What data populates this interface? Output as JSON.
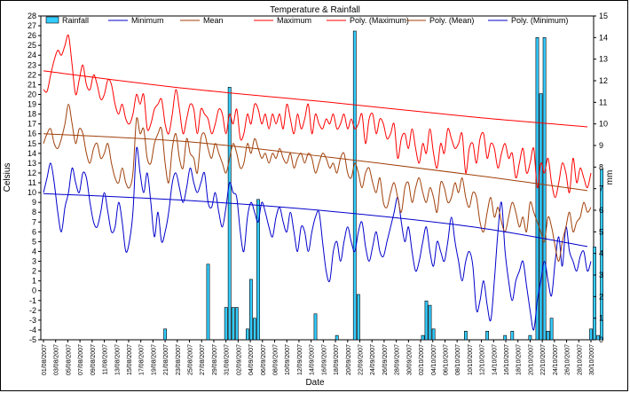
{
  "chart_data": {
    "type": "bar+line",
    "title": "Temperature & Rainfall",
    "xlabel": "Date",
    "ylabel": "Celsius",
    "y2label": "mm",
    "ylim": [
      -5,
      28
    ],
    "y2lim": [
      0,
      15
    ],
    "grid": false,
    "legend_position": "top",
    "x_tick_labels": [
      "01/08/2007",
      "03/08/2007",
      "05/08/2007",
      "07/08/2007",
      "09/08/2007",
      "11/08/2007",
      "13/08/2007",
      "15/08/2007",
      "17/08/2007",
      "19/08/2007",
      "21/08/2007",
      "23/08/2007",
      "25/08/2007",
      "27/08/2007",
      "29/08/2007",
      "31/08/2007",
      "02/09/2007",
      "04/09/2007",
      "06/09/2007",
      "08/09/2007",
      "10/09/2007",
      "12/09/2007",
      "14/09/2007",
      "16/09/2007",
      "18/09/2007",
      "20/09/2007",
      "22/09/2007",
      "24/09/2007",
      "26/09/2007",
      "28/09/2007",
      "30/09/2007",
      "02/10/2007",
      "04/10/2007",
      "06/10/2007",
      "08/10/2007",
      "10/10/2007",
      "12/10/2007",
      "14/10/2007",
      "16/10/2007",
      "18/10/2007",
      "20/10/2007",
      "22/10/2007",
      "24/10/2007",
      "26/10/2007",
      "28/10/2007",
      "30/10/2007"
    ],
    "legend": [
      {
        "name": "Rainfall",
        "color": "#33ccff",
        "kind": "bar"
      },
      {
        "name": "Minimum",
        "color": "#0000cc",
        "kind": "line"
      },
      {
        "name": "Mean",
        "color": "#a0400a",
        "kind": "line"
      },
      {
        "name": "Maximum",
        "color": "#ff0000",
        "kind": "line"
      },
      {
        "name": "Poly. (Maximum)",
        "color": "#ff0000",
        "kind": "line"
      },
      {
        "name": "Poly. (Mean)",
        "color": "#a0400a",
        "kind": "line"
      },
      {
        "name": "Poly. (Minimum)",
        "color": "#0000cc",
        "kind": "line"
      }
    ],
    "rainfall_mm": [
      0,
      0,
      0,
      0,
      0,
      0,
      0,
      0,
      0,
      0,
      0,
      0,
      0,
      0,
      0,
      0,
      0,
      0,
      0,
      0,
      0,
      0,
      0,
      0,
      0,
      0,
      0,
      0,
      0,
      0,
      0,
      0,
      0,
      0,
      0.5,
      0,
      0,
      0,
      0,
      0,
      0,
      0,
      0,
      0,
      0,
      0,
      3.5,
      0,
      0,
      0,
      0,
      1.5,
      11.7,
      1.5,
      1.5,
      0,
      0,
      0.5,
      2.8,
      1.0,
      6.5,
      0,
      0,
      0,
      0,
      0,
      0,
      0,
      0,
      0,
      0,
      0,
      0,
      0,
      0,
      0,
      1.2,
      0,
      0,
      0,
      0,
      0,
      0.2,
      0,
      0,
      0,
      0,
      14.3,
      2.1,
      0,
      0,
      0,
      0,
      0,
      0,
      0,
      0,
      0,
      0,
      0,
      0,
      0,
      0,
      0,
      0,
      0,
      0.2,
      1.8,
      1.6,
      0.5,
      0,
      0,
      0,
      0,
      0,
      0,
      0,
      0,
      0.4,
      0,
      0,
      0,
      0,
      0,
      0.4,
      0,
      0,
      0,
      0,
      0.2,
      0,
      0.4,
      0,
      0,
      0,
      0,
      0.2,
      0,
      14.0,
      11.4,
      14.0,
      0.4,
      1.0,
      0,
      0,
      0,
      0,
      0,
      0,
      0,
      0,
      0,
      0,
      0.5,
      4.3,
      0.2,
      7.9
    ],
    "maximum": [
      20.5,
      20.3,
      22.0,
      23.5,
      24.5,
      24.0,
      25.0,
      26.0,
      23.0,
      20.0,
      21.5,
      23.0,
      21.0,
      20.5,
      22.0,
      21.0,
      19.5,
      20.0,
      21.5,
      21.0,
      19.0,
      18.0,
      19.0,
      17.5,
      17.0,
      18.0,
      20.0,
      19.0,
      20.0,
      16.5,
      17.0,
      18.5,
      19.0,
      19.5,
      17.0,
      16.0,
      18.0,
      20.5,
      18.5,
      16.0,
      17.5,
      19.0,
      18.5,
      16.0,
      18.5,
      18.0,
      17.5,
      16.0,
      17.0,
      18.5,
      18.0,
      16.0,
      18.0,
      17.0,
      18.5,
      15.5,
      16.0,
      18.0,
      17.0,
      19.0,
      18.5,
      17.0,
      18.0,
      16.5,
      18.0,
      17.0,
      18.0,
      16.5,
      19.0,
      17.5,
      16.0,
      18.0,
      16.5,
      17.5,
      19.0,
      16.0,
      18.0,
      17.0,
      16.5,
      17.5,
      17.0,
      18.0,
      16.5,
      17.0,
      18.0,
      16.5,
      17.5,
      16.5,
      17.0,
      18.0,
      15.0,
      17.5,
      18.0,
      16.0,
      17.5,
      17.0,
      15.5,
      16.0,
      17.0,
      13.5,
      15.5,
      16.0,
      14.5,
      16.5,
      14.5,
      13.0,
      15.0,
      14.0,
      16.5,
      14.0,
      12.5,
      15.0,
      14.0,
      16.5,
      15.5,
      14.5,
      15.0,
      16.0,
      12.0,
      14.5,
      15.0,
      13.0,
      15.5,
      16.0,
      13.5,
      15.0,
      14.5,
      12.5,
      14.0,
      15.0,
      13.5,
      14.0,
      11.5,
      13.0,
      14.5,
      12.0,
      13.0,
      14.5,
      10.5,
      13.0,
      12.0,
      13.5,
      11.0,
      9.5,
      11.0,
      13.0,
      12.0,
      10.0,
      13.5,
      11.0,
      12.5,
      11.5,
      10.5,
      12.0
    ],
    "mean": [
      15.0,
      16.0,
      16.5,
      15.0,
      14.5,
      15.5,
      17.0,
      19.0,
      17.0,
      15.0,
      16.5,
      16.0,
      14.0,
      13.0,
      14.5,
      15.0,
      13.5,
      14.0,
      15.0,
      13.0,
      11.5,
      11.0,
      12.5,
      11.0,
      10.5,
      12.0,
      17.5,
      16.0,
      16.5,
      13.5,
      13.0,
      15.0,
      16.0,
      16.5,
      13.0,
      11.0,
      14.5,
      16.0,
      13.5,
      12.5,
      15.5,
      14.0,
      13.5,
      12.0,
      15.5,
      16.0,
      14.5,
      13.5,
      15.0,
      14.0,
      13.0,
      12.0,
      13.5,
      15.0,
      14.0,
      12.5,
      13.0,
      15.0,
      14.0,
      15.5,
      14.5,
      13.5,
      14.0,
      13.0,
      14.0,
      13.5,
      14.5,
      13.5,
      13.0,
      14.0,
      12.5,
      13.5,
      14.0,
      13.0,
      14.0,
      13.5,
      12.0,
      13.0,
      14.0,
      13.5,
      12.5,
      13.0,
      12.0,
      13.5,
      14.0,
      12.0,
      11.5,
      13.0,
      12.0,
      10.5,
      12.0,
      12.5,
      11.0,
      10.0,
      11.5,
      9.0,
      8.5,
      10.0,
      11.0,
      9.5,
      8.0,
      10.5,
      11.0,
      9.0,
      10.5,
      11.5,
      10.0,
      9.0,
      10.5,
      9.5,
      8.0,
      11.0,
      10.5,
      9.0,
      9.5,
      11.0,
      10.0,
      11.5,
      9.5,
      8.5,
      10.0,
      9.5,
      7.0,
      6.0,
      8.0,
      9.5,
      7.5,
      8.5,
      7.0,
      6.0,
      7.5,
      9.0,
      8.0,
      6.5,
      7.5,
      6.0,
      9.0,
      8.0,
      7.0,
      6.0,
      5.0,
      7.5,
      6.5,
      4.5,
      3.0,
      5.0,
      6.5,
      8.0,
      6.0,
      7.0,
      7.5,
      9.0,
      8.0,
      8.5
    ],
    "minimum": [
      10.0,
      11.5,
      13.0,
      11.0,
      8.0,
      6.0,
      8.5,
      10.0,
      12.5,
      11.0,
      10.0,
      12.0,
      11.5,
      9.0,
      7.0,
      6.5,
      8.0,
      10.0,
      8.0,
      6.0,
      6.5,
      9.0,
      7.0,
      4.0,
      5.0,
      8.0,
      14.5,
      12.0,
      10.0,
      12.0,
      9.0,
      5.5,
      8.0,
      5.0,
      6.0,
      8.0,
      11.0,
      12.0,
      10.5,
      9.0,
      10.5,
      12.5,
      11.0,
      10.0,
      11.0,
      12.0,
      9.0,
      8.5,
      10.0,
      8.0,
      6.5,
      8.5,
      11.0,
      10.0,
      9.5,
      6.0,
      4.0,
      7.5,
      9.0,
      8.0,
      7.0,
      9.0,
      8.0,
      6.5,
      5.5,
      7.5,
      8.5,
      7.0,
      6.0,
      8.0,
      6.0,
      4.0,
      6.5,
      6.0,
      4.0,
      6.0,
      7.5,
      8.0,
      5.0,
      2.0,
      1.0,
      4.0,
      5.0,
      3.0,
      5.0,
      6.5,
      5.0,
      4.0,
      6.0,
      7.0,
      4.5,
      3.0,
      4.5,
      6.0,
      4.0,
      3.5,
      5.0,
      6.5,
      8.0,
      9.5,
      7.0,
      5.0,
      6.5,
      4.0,
      2.0,
      3.0,
      5.0,
      6.5,
      4.0,
      2.5,
      5.0,
      4.0,
      3.0,
      5.0,
      7.5,
      5.0,
      3.0,
      1.0,
      3.0,
      4.0,
      2.5,
      -2.0,
      -1.0,
      1.0,
      -1.5,
      -3.0,
      1.0,
      6.0,
      9.0,
      4.0,
      1.0,
      -1.0,
      1.0,
      2.0,
      3.0,
      0.5,
      -2.0,
      -4.0,
      -1.0,
      1.0,
      3.0,
      1.0,
      -0.5,
      3.0,
      5.5,
      2.5,
      6.5,
      4.0,
      3.0,
      2.0,
      3.5,
      4.0,
      2.0,
      3.0
    ],
    "poly_maximum": [
      [
        0,
        22.4
      ],
      [
        40,
        20.6
      ],
      [
        80,
        19.2
      ],
      [
        120,
        17.7
      ],
      [
        152,
        16.7
      ]
    ],
    "poly_mean": [
      [
        0,
        16.0
      ],
      [
        40,
        15.2
      ],
      [
        80,
        13.6
      ],
      [
        120,
        11.8
      ],
      [
        152,
        10.2
      ]
    ],
    "poly_minimum": [
      [
        0,
        9.9
      ],
      [
        40,
        9.2
      ],
      [
        80,
        8.1
      ],
      [
        120,
        6.5
      ],
      [
        152,
        4.5
      ]
    ]
  }
}
